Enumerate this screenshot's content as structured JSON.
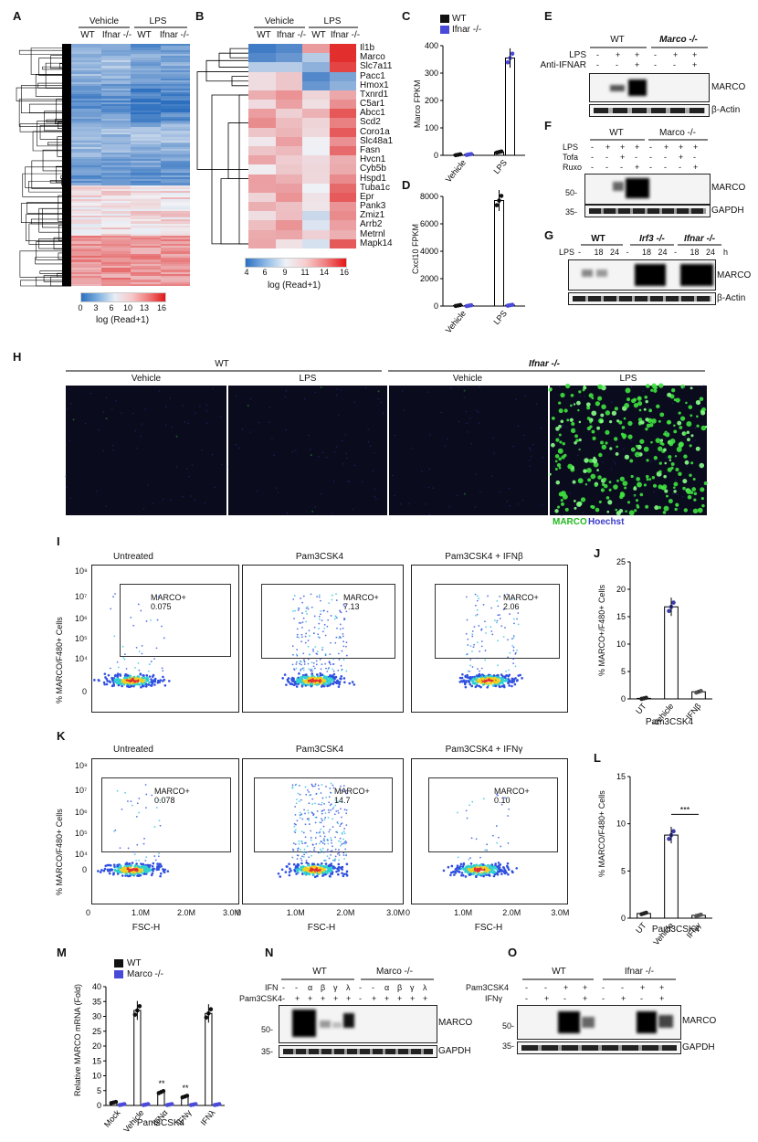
{
  "panels": {
    "A": "A",
    "B": "B",
    "C": "C",
    "D": "D",
    "E": "E",
    "F": "F",
    "G": "G",
    "H": "H",
    "I": "I",
    "J": "J",
    "K": "K",
    "L": "L",
    "M": "M",
    "N": "N",
    "O": "O"
  },
  "heatmap_A": {
    "group_vehicle": "Vehicle",
    "group_lps": "LPS",
    "cols": [
      "WT",
      "Ifnar -/-",
      "WT",
      "Ifnar -/-"
    ],
    "scale_ticks": [
      "0",
      "3",
      "6",
      "10",
      "13",
      "16"
    ],
    "scale_label": "log (Read+1)"
  },
  "heatmap_B": {
    "group_vehicle": "Vehicle",
    "group_lps": "LPS",
    "cols": [
      "WT",
      "Ifnar -/-",
      "WT",
      "Ifnar -/-"
    ],
    "genes": [
      "Il1b",
      "Marco",
      "Slc7a11",
      "Pacc1",
      "Hmox1",
      "Txnrd1",
      "C5ar1",
      "Abcc1",
      "Scd2",
      "Coro1a",
      "Slc48a1",
      "Fasn",
      "Hvcn1",
      "Cyb5b",
      "Hspd1",
      "Tuba1c",
      "Epr",
      "Pank3",
      "Zmiz1",
      "Arrb2",
      "Metrnl",
      "Mapk14"
    ],
    "scale_ticks": [
      "4",
      "6",
      "9",
      "11",
      "14",
      "16"
    ],
    "scale_label": "log (Read+1)"
  },
  "legend_C": {
    "wt": "WT",
    "ifnar": "Ifnar -/-"
  },
  "legend_M": {
    "wt": "WT",
    "marco": "Marco -/-"
  },
  "panel_E": {
    "row_lps": "LPS",
    "row_anti": "Anti-IFNAR",
    "wt": "WT",
    "ko": "Marco -/-",
    "lps_signs": [
      "-",
      "+",
      "+",
      "-",
      "+",
      "+"
    ],
    "anti_signs": [
      "-",
      "-",
      "+",
      "-",
      "-",
      "+"
    ],
    "band1": "MARCO",
    "band2": "β-Actin"
  },
  "panel_F": {
    "wt": "WT",
    "ko": "Marco -/-",
    "rows": [
      "LPS",
      "Tofa",
      "Ruxo"
    ],
    "lps": [
      "-",
      "+",
      "+",
      "+",
      "-",
      "+",
      "+",
      "+"
    ],
    "tofa": [
      "-",
      "-",
      "+",
      "-",
      "-",
      "-",
      "+",
      "-"
    ],
    "ruxo": [
      "-",
      "-",
      "-",
      "+",
      "-",
      "-",
      "-",
      "+"
    ],
    "mw1": "50-",
    "mw2": "35-",
    "band1": "MARCO",
    "band2": "GAPDH"
  },
  "panel_G": {
    "groups": [
      "WT",
      "Irf3 -/-",
      "Ifnar -/-"
    ],
    "row": "LPS",
    "times": [
      "-",
      "18",
      "24",
      "-",
      "18",
      "24",
      "-",
      "18",
      "24"
    ],
    "unit": "h",
    "band1": "MARCO",
    "band2": "β-Actin"
  },
  "panel_H": {
    "wt": "WT",
    "ifnar": "Ifnar -/-",
    "cols": [
      "Vehicle",
      "LPS",
      "Vehicle",
      "LPS"
    ],
    "stain_marco": "MARCO",
    "stain_hoechst": "Hoechst"
  },
  "panel_I": {
    "titles": [
      "Untreated",
      "Pam3CSK4",
      "Pam3CSK4 + IFNβ"
    ],
    "gate": "MARCO+",
    "values": [
      "0.075",
      "7.13",
      "2.06"
    ],
    "ylabel": "% MARCO/F480+ Cells",
    "yticks": [
      "10⁸",
      "10⁷",
      "10⁶",
      "10⁵",
      "10⁴",
      "0"
    ]
  },
  "panel_K": {
    "titles": [
      "Untreated",
      "Pam3CSK4",
      "Pam3CSK4 + IFNγ"
    ],
    "gate": "MARCO+",
    "values": [
      "0.078",
      "14.7",
      "0.10"
    ],
    "ylabel": "% MARCO/F480+ Cells",
    "yticks": [
      "10⁸",
      "10⁷",
      "10⁶",
      "10⁵",
      "10⁴",
      "0"
    ],
    "xticks": [
      "0",
      "1.0M",
      "2.0M",
      "3.0M"
    ],
    "xlabel": "FSC-H"
  },
  "panel_N": {
    "wt": "WT",
    "ko": "Marco -/-",
    "row_ifn": "IFN",
    "row_pam": "Pam3CSK4",
    "ifn": [
      "-",
      "-",
      "α",
      "β",
      "γ",
      "λ",
      "-",
      "-",
      "α",
      "β",
      "γ",
      "λ"
    ],
    "pam": [
      "-",
      "+",
      "+",
      "+",
      "+",
      "+",
      "-",
      "+",
      "+",
      "+",
      "+",
      "+"
    ],
    "mw1": "50-",
    "mw2": "35-",
    "band1": "MARCO",
    "band2": "GAPDH"
  },
  "panel_O": {
    "wt": "WT",
    "ko": "Ifnar -/-",
    "row_pam": "Pam3CSK4",
    "row_ifng": "IFNγ",
    "pam": [
      "-",
      "-",
      "+",
      "+",
      "-",
      "-",
      "+",
      "+"
    ],
    "ifng": [
      "-",
      "+",
      "-",
      "+",
      "-",
      "+",
      "-",
      "+"
    ],
    "mw1": "50-",
    "mw2": "35-",
    "band1": "MARCO",
    "band2": "GAPDH"
  },
  "chart_data": [
    {
      "type": "bar",
      "panel": "C",
      "ylabel": "Marco FPKM",
      "categories": [
        "Vehicle",
        "LPS"
      ],
      "ylim": [
        0,
        400
      ],
      "yticks": [
        0,
        100,
        200,
        300,
        400
      ],
      "series": [
        {
          "name": "WT",
          "values": [
            2,
            12
          ]
        },
        {
          "name": "Ifnar -/-",
          "values": [
            3,
            355
          ]
        }
      ]
    },
    {
      "type": "bar",
      "panel": "D",
      "ylabel": "Cxcl10 FPKM",
      "categories": [
        "Vehicle",
        "LPS"
      ],
      "ylim": [
        0,
        8000
      ],
      "yticks": [
        0,
        2000,
        4000,
        6000,
        8000
      ],
      "series": [
        {
          "name": "WT",
          "values": [
            40,
            7700
          ]
        },
        {
          "name": "Ifnar -/-",
          "values": [
            30,
            60
          ]
        }
      ]
    },
    {
      "type": "bar",
      "panel": "J",
      "ylabel": "% MARCO+/F480+ Cells",
      "categories": [
        "UT",
        "Vehicle",
        "IFNβ"
      ],
      "group_label": "Pam3CSK4",
      "ylim": [
        0,
        25
      ],
      "yticks": [
        0,
        5,
        10,
        15,
        20,
        25
      ],
      "values": [
        0.1,
        16.8,
        1.3
      ]
    },
    {
      "type": "bar",
      "panel": "L",
      "ylabel": "% MARCO/F480+ Cells",
      "categories": [
        "UT",
        "Vehicle",
        "IFNγ"
      ],
      "group_label": "Pam3CSK4",
      "ylim": [
        0,
        15
      ],
      "yticks": [
        0,
        5,
        10,
        15
      ],
      "values": [
        0.5,
        8.8,
        0.3
      ],
      "annotation": "***"
    },
    {
      "type": "bar",
      "panel": "M",
      "ylabel": "Relative MARCO mRNA (Fold)",
      "categories": [
        "Mock",
        "Vehicle",
        "IFNα",
        "IFNγ",
        "IFNλ"
      ],
      "group_label": "Pam3CSK4",
      "ylim": [
        0,
        40
      ],
      "yticks": [
        0,
        5,
        10,
        15,
        20,
        25,
        30,
        35,
        40
      ],
      "series": [
        {
          "name": "WT",
          "values": [
            1,
            32,
            4.5,
            3,
            31
          ]
        },
        {
          "name": "Marco -/-",
          "values": [
            0.3,
            0.3,
            0.3,
            0.3,
            0.3
          ]
        }
      ],
      "annotations": [
        "**",
        "**"
      ]
    }
  ]
}
